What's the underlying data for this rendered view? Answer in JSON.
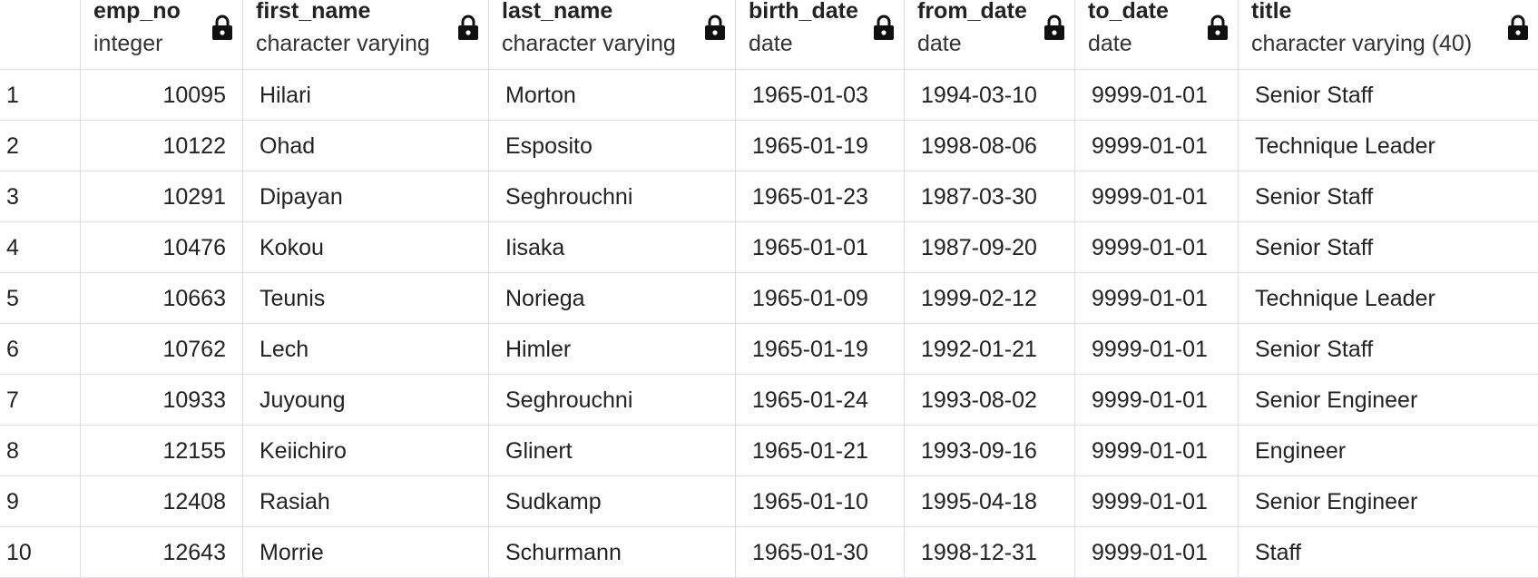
{
  "columns": [
    {
      "name": "emp_no",
      "type": "integer"
    },
    {
      "name": "first_name",
      "type": "character varying"
    },
    {
      "name": "last_name",
      "type": "character varying"
    },
    {
      "name": "birth_date",
      "type": "date"
    },
    {
      "name": "from_date",
      "type": "date"
    },
    {
      "name": "to_date",
      "type": "date"
    },
    {
      "name": "title",
      "type": "character varying (40)"
    }
  ],
  "rows": [
    {
      "n": "1",
      "emp_no": "10095",
      "first_name": "Hilari",
      "last_name": "Morton",
      "birth_date": "1965-01-03",
      "from_date": "1994-03-10",
      "to_date": "9999-01-01",
      "title": "Senior Staff"
    },
    {
      "n": "2",
      "emp_no": "10122",
      "first_name": "Ohad",
      "last_name": "Esposito",
      "birth_date": "1965-01-19",
      "from_date": "1998-08-06",
      "to_date": "9999-01-01",
      "title": "Technique Leader"
    },
    {
      "n": "3",
      "emp_no": "10291",
      "first_name": "Dipayan",
      "last_name": "Seghrouchni",
      "birth_date": "1965-01-23",
      "from_date": "1987-03-30",
      "to_date": "9999-01-01",
      "title": "Senior Staff"
    },
    {
      "n": "4",
      "emp_no": "10476",
      "first_name": "Kokou",
      "last_name": "Iisaka",
      "birth_date": "1965-01-01",
      "from_date": "1987-09-20",
      "to_date": "9999-01-01",
      "title": "Senior Staff"
    },
    {
      "n": "5",
      "emp_no": "10663",
      "first_name": "Teunis",
      "last_name": "Noriega",
      "birth_date": "1965-01-09",
      "from_date": "1999-02-12",
      "to_date": "9999-01-01",
      "title": "Technique Leader"
    },
    {
      "n": "6",
      "emp_no": "10762",
      "first_name": "Lech",
      "last_name": "Himler",
      "birth_date": "1965-01-19",
      "from_date": "1992-01-21",
      "to_date": "9999-01-01",
      "title": "Senior Staff"
    },
    {
      "n": "7",
      "emp_no": "10933",
      "first_name": "Juyoung",
      "last_name": "Seghrouchni",
      "birth_date": "1965-01-24",
      "from_date": "1993-08-02",
      "to_date": "9999-01-01",
      "title": "Senior Engineer"
    },
    {
      "n": "8",
      "emp_no": "12155",
      "first_name": "Keiichiro",
      "last_name": "Glinert",
      "birth_date": "1965-01-21",
      "from_date": "1993-09-16",
      "to_date": "9999-01-01",
      "title": "Engineer"
    },
    {
      "n": "9",
      "emp_no": "12408",
      "first_name": "Rasiah",
      "last_name": "Sudkamp",
      "birth_date": "1965-01-10",
      "from_date": "1995-04-18",
      "to_date": "9999-01-01",
      "title": "Senior Engineer"
    },
    {
      "n": "10",
      "emp_no": "12643",
      "first_name": "Morrie",
      "last_name": "Schurmann",
      "birth_date": "1965-01-30",
      "from_date": "1998-12-31",
      "to_date": "9999-01-01",
      "title": "Staff"
    }
  ],
  "icons": {
    "column_lock": "lock-icon"
  },
  "colors": {
    "grid_line": "#dcdde6",
    "text": "#222222"
  }
}
